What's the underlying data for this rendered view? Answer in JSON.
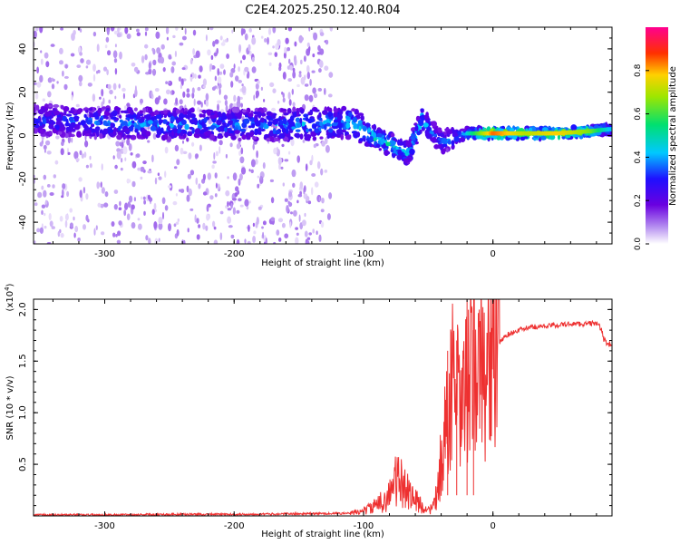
{
  "title": "C2E4.2025.250.12.40.R04",
  "chart_data": [
    {
      "type": "heatmap",
      "description_panel": "spectrogram",
      "xlabel": "Height of straight line (km)",
      "ylabel": "Frequency (Hz)",
      "xlim": [
        -355,
        92
      ],
      "ylim": [
        -50,
        50
      ],
      "xticks": [
        -300,
        -200,
        -100,
        0
      ],
      "yticks": [
        -40,
        -20,
        0,
        20,
        40
      ],
      "colorbar": {
        "label": "Normalized spectral amplitude",
        "range": [
          0,
          1
        ],
        "ticks": [
          "0.0",
          "0.2",
          "0.4",
          "0.6",
          "0.8"
        ],
        "ticks_values": [
          0.0,
          0.2,
          0.4,
          0.6,
          0.8
        ]
      },
      "ridge": [
        {
          "x": -355,
          "freq": 7,
          "amp": 0.32
        },
        {
          "x": -300,
          "freq": 6,
          "amp": 0.38
        },
        {
          "x": -250,
          "freq": 5,
          "amp": 0.4
        },
        {
          "x": -200,
          "freq": 5,
          "amp": 0.38
        },
        {
          "x": -150,
          "freq": 5,
          "amp": 0.42
        },
        {
          "x": -110,
          "freq": 6,
          "amp": 0.45
        },
        {
          "x": -95,
          "freq": 0,
          "amp": 0.5
        },
        {
          "x": -80,
          "freq": -4,
          "amp": 0.5
        },
        {
          "x": -65,
          "freq": -8,
          "amp": 0.45
        },
        {
          "x": -55,
          "freq": 8,
          "amp": 0.45
        },
        {
          "x": -40,
          "freq": -3,
          "amp": 0.35
        },
        {
          "x": -20,
          "freq": 1,
          "amp": 0.45
        },
        {
          "x": 0,
          "freq": 1,
          "amp": 0.85
        },
        {
          "x": 25,
          "freq": 1,
          "amp": 0.7
        },
        {
          "x": 50,
          "freq": 1,
          "amp": 0.78
        },
        {
          "x": 75,
          "freq": 2,
          "amp": 0.65
        },
        {
          "x": 92,
          "freq": 3,
          "amp": 0.4
        }
      ]
    },
    {
      "type": "line",
      "series": [
        {
          "name": "SNR",
          "color": "#ee3030",
          "x": [
            -355,
            -300,
            -250,
            -200,
            -150,
            -110,
            -100,
            -90,
            -80,
            -75,
            -70,
            -65,
            -60,
            -55,
            -50,
            -45,
            -40,
            -35,
            -30,
            -25,
            -20,
            -15,
            -10,
            -5,
            0,
            10,
            20,
            30,
            40,
            50,
            60,
            70,
            80,
            84,
            86,
            92
          ],
          "y": [
            0.01,
            0.01,
            0.015,
            0.015,
            0.02,
            0.025,
            0.05,
            0.1,
            0.2,
            0.35,
            0.3,
            0.25,
            0.15,
            0.1,
            0.05,
            0.1,
            0.5,
            1.0,
            1.4,
            0.9,
            1.3,
            1.5,
            1.4,
            1.5,
            1.6,
            1.75,
            1.8,
            1.83,
            1.84,
            1.85,
            1.86,
            1.86,
            1.87,
            1.8,
            1.7,
            1.65
          ]
        }
      ],
      "xlabel": "Height of straight line (km)",
      "ylabel": "SNR (10 * v/v)",
      "scale_label": "(x10",
      "scale_exponent": "4",
      "scale_close": ")",
      "xlim": [
        -355,
        92
      ],
      "ylim": [
        0,
        2.1
      ],
      "xticks": [
        -300,
        -200,
        -100,
        0
      ],
      "yticks": [
        0.5,
        1.0,
        1.5,
        2.0
      ],
      "ytick_labels": [
        "0.5",
        "1.0",
        "1.5",
        "2.0"
      ]
    }
  ]
}
